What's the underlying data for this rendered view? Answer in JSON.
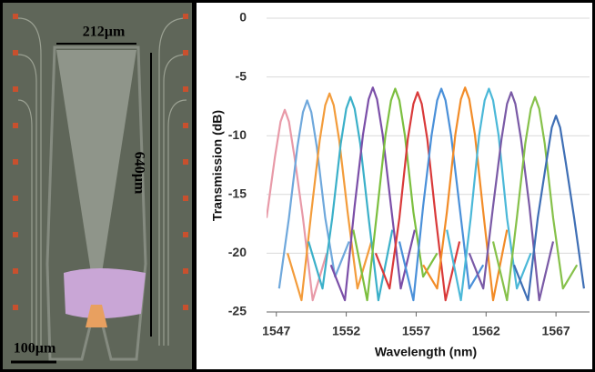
{
  "micrograph": {
    "width_label": "212µm",
    "height_label": "640µm",
    "scale_label": "100µm"
  },
  "chart_data": {
    "type": "line",
    "xlabel": "Wavelength (nm)",
    "ylabel": "Transmission (dB)",
    "xlim": [
      1546.3,
      1569.4
    ],
    "xticks": [
      1547,
      1552,
      1557,
      1562,
      1567
    ],
    "ylim": [
      -25,
      0
    ],
    "yticks": [
      0,
      -5,
      -10,
      -15,
      -20,
      -25
    ],
    "grid": true,
    "series": [
      {
        "color": "#e89aa8",
        "x": [
          1546.3,
          1546.9,
          1547.3,
          1547.6,
          1547.9,
          1548.3,
          1548.9,
          1549.6,
          1550.6
        ],
        "values": [
          -17,
          -11.8,
          -8.8,
          -7.8,
          -8.8,
          -11.8,
          -17,
          -24,
          -20
        ]
      },
      {
        "color": "#6fa8dc",
        "x": [
          1547.2,
          1547.9,
          1548.5,
          1548.9,
          1549.2,
          1549.5,
          1549.9,
          1550.5,
          1551.2,
          1552.2
        ],
        "values": [
          -23,
          -17,
          -11,
          -8,
          -7,
          -8,
          -11,
          -17,
          -22,
          -19
        ]
      },
      {
        "color": "#f39c3b",
        "x": [
          1547.8,
          1548.8,
          1549.5,
          1550.1,
          1550.5,
          1550.8,
          1551.1,
          1551.5,
          1552.1,
          1552.8,
          1553.8
        ],
        "values": [
          -20,
          -24,
          -16.5,
          -10.4,
          -7.4,
          -6.4,
          -7.4,
          -10.4,
          -16.5,
          -23,
          -19
        ]
      },
      {
        "color": "#3bb0c9",
        "x": [
          1549.3,
          1550.3,
          1551.0,
          1551.6,
          1552.0,
          1552.3,
          1552.6,
          1553.0,
          1553.6,
          1554.3,
          1555.3
        ],
        "values": [
          -19,
          -23,
          -17,
          -10.7,
          -7.7,
          -6.7,
          -7.7,
          -10.7,
          -17,
          -24,
          -18
        ]
      },
      {
        "color": "#7b4fa8",
        "x": [
          1550.9,
          1551.9,
          1552.6,
          1553.2,
          1553.6,
          1553.9,
          1554.2,
          1554.6,
          1555.2,
          1555.9,
          1556.9
        ],
        "values": [
          -21,
          -24,
          -16,
          -9.9,
          -6.9,
          -5.9,
          -6.9,
          -9.9,
          -16,
          -23,
          -18
        ]
      },
      {
        "color": "#7cbf3f",
        "x": [
          1552.5,
          1553.5,
          1554.2,
          1554.8,
          1555.2,
          1555.5,
          1555.8,
          1556.2,
          1556.8,
          1557.5,
          1558.5
        ],
        "values": [
          -18,
          -24,
          -16.5,
          -10,
          -7,
          -6,
          -7,
          -10,
          -16.5,
          -22,
          -20
        ]
      },
      {
        "color": "#d93a3a",
        "x": [
          1554.1,
          1555.1,
          1555.8,
          1556.4,
          1556.8,
          1557.1,
          1557.4,
          1557.8,
          1558.4,
          1559.1,
          1560.1
        ],
        "values": [
          -20,
          -23,
          -17,
          -10.3,
          -7.3,
          -6.3,
          -7.3,
          -10.3,
          -17,
          -24,
          -19
        ]
      },
      {
        "color": "#4a90d9",
        "x": [
          1555.8,
          1556.8,
          1557.5,
          1558.1,
          1558.5,
          1558.8,
          1559.1,
          1559.5,
          1560.1,
          1560.8,
          1561.8
        ],
        "values": [
          -19,
          -24,
          -16,
          -10,
          -7,
          -6,
          -7,
          -10,
          -16,
          -23,
          -21
        ]
      },
      {
        "color": "#f28c28",
        "x": [
          1557.5,
          1558.5,
          1559.2,
          1559.8,
          1560.2,
          1560.5,
          1560.8,
          1561.2,
          1561.8,
          1562.5,
          1563.5
        ],
        "values": [
          -21,
          -23,
          -16.5,
          -9.9,
          -6.9,
          -5.9,
          -6.9,
          -9.9,
          -16.5,
          -24,
          -18
        ]
      },
      {
        "color": "#4bb8d8",
        "x": [
          1559.2,
          1560.2,
          1560.9,
          1561.5,
          1561.9,
          1562.2,
          1562.5,
          1562.9,
          1563.5,
          1564.2,
          1565.2
        ],
        "values": [
          -18,
          -24,
          -17,
          -10,
          -7,
          -6,
          -7,
          -10,
          -17,
          -23,
          -20
        ]
      },
      {
        "color": "#7a5aa6",
        "x": [
          1560.8,
          1561.8,
          1562.5,
          1563.1,
          1563.5,
          1563.8,
          1564.1,
          1564.5,
          1565.1,
          1565.8,
          1566.8
        ],
        "values": [
          -20,
          -23,
          -16,
          -10.3,
          -7.3,
          -6.3,
          -7.3,
          -10.3,
          -16,
          -24,
          -19
        ]
      },
      {
        "color": "#86c14a",
        "x": [
          1562.5,
          1563.5,
          1564.2,
          1564.8,
          1565.2,
          1565.5,
          1565.8,
          1566.2,
          1566.8,
          1567.5,
          1568.5
        ],
        "values": [
          -19,
          -24,
          -17,
          -10.7,
          -7.7,
          -6.7,
          -7.7,
          -10.7,
          -17,
          -23,
          -21
        ]
      },
      {
        "color": "#3f6fb5",
        "x": [
          1564.0,
          1565.0,
          1565.7,
          1566.3,
          1566.7,
          1567.0,
          1567.3,
          1567.7,
          1568.3,
          1569.0
        ],
        "values": [
          -21,
          -24,
          -17,
          -12.3,
          -9.3,
          -8.3,
          -9.3,
          -12.3,
          -17,
          -23
        ]
      }
    ]
  }
}
